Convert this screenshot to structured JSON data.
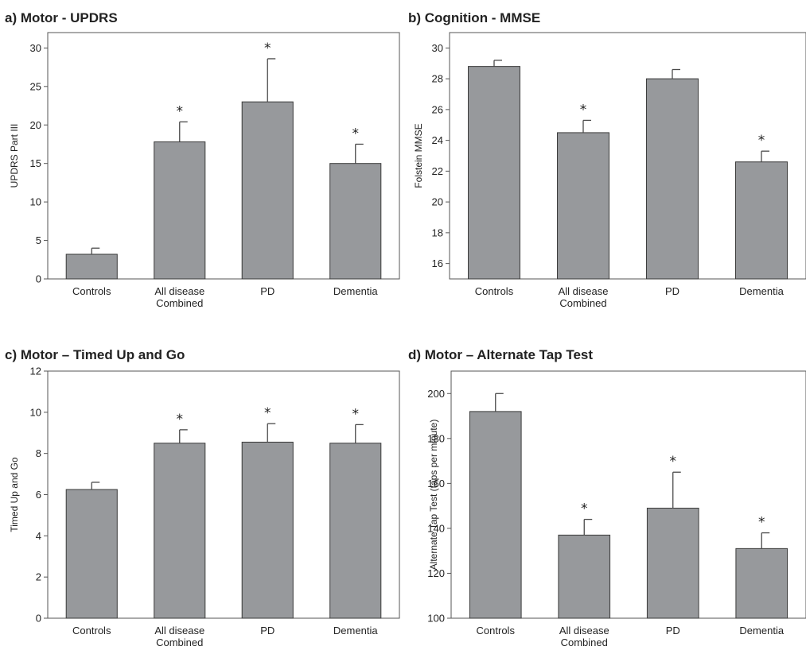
{
  "chart_data": [
    {
      "type": "bar",
      "title": "a) Motor - UPDRS",
      "ylabel": "UPDRS Part III",
      "xlabel": "",
      "categories": [
        [
          "Controls"
        ],
        [
          "All disease",
          "Combined"
        ],
        [
          "PD"
        ],
        [
          "Dementia"
        ]
      ],
      "values": [
        3.2,
        17.8,
        23.0,
        15.0
      ],
      "errors": [
        0.8,
        2.6,
        5.6,
        2.5
      ],
      "significant": [
        "",
        "*",
        "*",
        "*"
      ],
      "ylim": [
        0,
        32
      ],
      "yticks": [
        0,
        5,
        10,
        15,
        20,
        25,
        30
      ],
      "grid": false
    },
    {
      "type": "bar",
      "title": "b) Cognition - MMSE",
      "ylabel": "Folstein MMSE",
      "xlabel": "",
      "categories": [
        [
          "Controls"
        ],
        [
          "All disease",
          "Combined"
        ],
        [
          "PD"
        ],
        [
          "Dementia"
        ]
      ],
      "values": [
        28.8,
        24.5,
        28.0,
        22.6
      ],
      "errors": [
        0.4,
        0.8,
        0.6,
        0.7
      ],
      "significant": [
        "",
        "*",
        "",
        "*"
      ],
      "ylim": [
        15,
        31
      ],
      "yticks": [
        16,
        18,
        20,
        22,
        24,
        26,
        28,
        30
      ],
      "grid": false
    },
    {
      "type": "bar",
      "title": "c) Motor – Timed Up and Go",
      "ylabel": "Timed Up and Go",
      "xlabel": "",
      "categories": [
        [
          "Controls"
        ],
        [
          "All disease",
          "Combined"
        ],
        [
          "PD"
        ],
        [
          "Dementia"
        ]
      ],
      "values": [
        6.25,
        8.5,
        8.55,
        8.5
      ],
      "errors": [
        0.35,
        0.65,
        0.9,
        0.9
      ],
      "significant": [
        "",
        "*",
        "*",
        "*"
      ],
      "ylim": [
        0,
        12
      ],
      "yticks": [
        0,
        2,
        4,
        6,
        8,
        10,
        12
      ],
      "grid": false
    },
    {
      "type": "bar",
      "title": "d) Motor – Alternate Tap Test",
      "ylabel": "Alternate Tap Test (taps per minute)",
      "xlabel": "",
      "categories": [
        [
          "Controls"
        ],
        [
          "All disease",
          "Combined"
        ],
        [
          "PD"
        ],
        [
          "Dementia"
        ]
      ],
      "values": [
        192,
        137,
        149,
        131
      ],
      "errors": [
        8,
        7,
        16,
        7
      ],
      "significant": [
        "",
        "*",
        "*",
        "*"
      ],
      "ylim": [
        100,
        210
      ],
      "yticks": [
        100,
        120,
        140,
        160,
        180,
        200
      ],
      "grid": false
    }
  ]
}
